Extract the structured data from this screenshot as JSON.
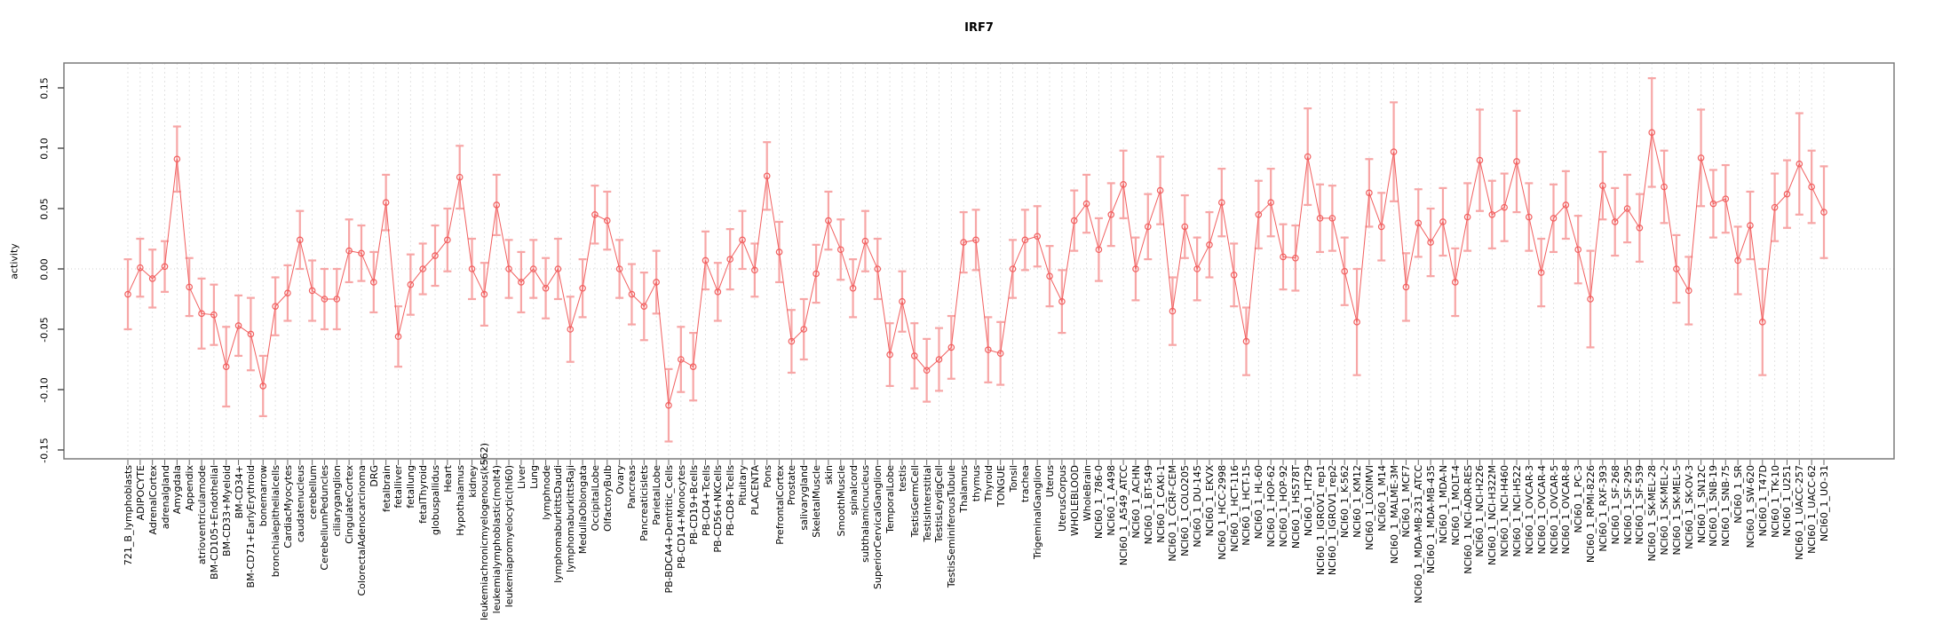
{
  "chart_data": {
    "type": "line",
    "title": "IRF7",
    "ylabel": "activity",
    "xlabel": "",
    "ylim": [
      -0.17,
      0.17
    ],
    "y_tick_values": [
      0.15,
      0.1,
      0.05,
      0.0,
      -0.05,
      -0.1,
      -0.15
    ],
    "y_tick_labels": [
      "0.15",
      "0.10",
      "0.05",
      "0.00",
      "-0.05",
      "-0.10",
      "-0.15"
    ],
    "grid": "dashed vertical gridline per category; dotted horizontal line at 0",
    "legend": "none",
    "marker": "open-circle-with-error-bars",
    "series_color": "#f15f5f",
    "error_bar_color": "#f7a6a6",
    "gridline_color": "#e0e0e0",
    "categories": [
      "721_B_lymphoblasts",
      "ADIPOCYTE",
      "AdrenalCortex",
      "adrenalgland",
      "Amygdala",
      "Appendix",
      "atrioventricularnode",
      "BM-CD105+Endothelial",
      "BM-CD33+Myeloid",
      "BM-CD34+",
      "BM-CD71+EarlyErythroid",
      "bonemarrow",
      "bronchialepithelialcells",
      "CardiacMyocytes",
      "caudatenucleus",
      "cerebellum",
      "CerebellumPeduncles",
      "ciliaryganglion",
      "CingulateCortex",
      "ColorectalAdenocarcinoma",
      "DRG",
      "fetalbrain",
      "fetalliver",
      "fetallung",
      "fetalThyroid",
      "globuspallidus",
      "Heart",
      "Hypothalamus",
      "kidney",
      "leukemiachronicmyelogenous(k562)",
      "leukemialymphoblastic(molt4)",
      "leukemiapromyelocytic(hl60)",
      "Liver",
      "Lung",
      "lymphnode",
      "lymphomaburkittsDaudi",
      "lymphomaburkittsRaji",
      "MedullaOblongata",
      "OccipitalLobe",
      "OlfactoryBulb",
      "Ovary",
      "Pancreas",
      "Pancreaticislets",
      "ParietalLobe",
      "PB-BDCA4+Dentritic_Cells",
      "PB-CD14+Monocytes",
      "PB-CD19+Bcells",
      "PB-CD4+Tcells",
      "PB-CD56+NKCells",
      "PB-CD8+Tcells",
      "Pituitary",
      "PLACENTA",
      "Pons",
      "PrefrontalCortex",
      "Prostate",
      "salivarygland",
      "SkeletalMuscle",
      "skin",
      "SmoothMuscle",
      "spinalcord",
      "subthalamicnucleus",
      "SuperiorCervicalGanglion",
      "TemporalLobe",
      "testis",
      "TestisGermCell",
      "TestisInterstitial",
      "TestisLeydigCell",
      "TestisSeminiferousTubule",
      "Thalamus",
      "thymus",
      "Thyroid",
      "TONGUE",
      "Tonsil",
      "trachea",
      "TrigeminalGanglion",
      "Uterus",
      "UterusCorpus",
      "WHOLEBLOOD",
      "WholeBrain",
      "NCI60_1_786-0",
      "NCI60_1_A498",
      "NCI60_1_A549_ATCC",
      "NCI60_1_ACHN",
      "NCI60_1_BT-549",
      "NCI60_1_CAKI-1",
      "NCI60_1_CCRF-CEM",
      "NCI60_1_COLO205",
      "NCI60_1_DU-145",
      "NCI60_1_EKVX",
      "NCI60_1_HCC-2998",
      "NCI60_1_HCT-116",
      "NCI60_1_HCT-15",
      "NCI60_1_HL-60",
      "NCI60_1_HOP-62",
      "NCI60_1_HOP-92",
      "NCI60_1_HS578T",
      "NCI60_1_HT29",
      "NCI60_1_IGROV1_rep1",
      "NCI60_1_IGROV1_rep2",
      "NCI60_1_K-562",
      "NCI60_1_KM12",
      "NCI60_1_LOXIMVI",
      "NCI60_1_M14",
      "NCI60_1_MALME-3M",
      "NCI60_1_MCF7",
      "NCI60_1_MDA-MB-231_ATCC",
      "NCI60_1_MDA-MB-435",
      "NCI60_1_MDA-N",
      "NCI60_1_MOLT-4",
      "NCI60_1_NCI-ADR-RES",
      "NCI60_1_NCI-H226",
      "NCI60_1_NCI-H322M",
      "NCI60_1_NCI-H460",
      "NCI60_1_NCI-H522",
      "NCI60_1_OVCAR-3",
      "NCI60_1_OVCAR-4",
      "NCI60_1_OVCAR-5",
      "NCI60_1_OVCAR-8",
      "NCI60_1_PC-3",
      "NCI60_1_RPMI-8226",
      "NCI60_1_RXF-393",
      "NCI60_1_SF-268",
      "NCI60_1_SF-295",
      "NCI60_1_SF-539",
      "NCI60_1_SK-MEL-28",
      "NCI60_1_SK-MEL-2",
      "NCI60_1_SK-MEL-5",
      "NCI60_1_SK-OV-3",
      "NCI60_1_SN12C",
      "NCI60_1_SNB-19",
      "NCI60_1_SNB-75",
      "NCI60_1_SR",
      "NCI60_1_SW-620",
      "NCI60_1_T47D",
      "NCI60_1_TK-10",
      "NCI60_1_U251",
      "NCI60_1_UACC-257",
      "NCI60_1_UACC-62",
      "NCI60_1_UO-31"
    ],
    "values": [
      -0.021,
      0.001,
      -0.008,
      0.002,
      0.091,
      -0.015,
      -0.037,
      -0.038,
      -0.081,
      -0.047,
      -0.054,
      -0.097,
      -0.031,
      -0.02,
      0.024,
      -0.018,
      -0.025,
      -0.025,
      0.015,
      0.013,
      -0.011,
      0.055,
      -0.056,
      -0.013,
      0.0,
      0.011,
      0.024,
      0.076,
      0.0,
      -0.021,
      0.053,
      0.0,
      -0.011,
      0.0,
      -0.016,
      0.0,
      -0.05,
      -0.016,
      0.045,
      0.04,
      0.0,
      -0.021,
      -0.031,
      -0.011,
      -0.113,
      -0.075,
      -0.081,
      0.007,
      -0.019,
      0.008,
      0.024,
      -0.001,
      0.077,
      0.014,
      -0.06,
      -0.05,
      -0.004,
      0.04,
      0.016,
      -0.016,
      0.023,
      0.0,
      -0.071,
      -0.027,
      -0.072,
      -0.084,
      -0.075,
      -0.065,
      0.022,
      0.024,
      -0.067,
      -0.07,
      0.0,
      0.024,
      0.027,
      -0.006,
      -0.027,
      0.04,
      0.054,
      0.016,
      0.045,
      0.07,
      0.0,
      0.035,
      0.065,
      -0.035,
      0.035,
      0.0,
      0.02,
      0.055,
      -0.005,
      -0.06,
      0.045,
      0.055,
      0.01,
      0.009,
      0.093,
      0.042,
      0.042,
      -0.002,
      -0.044,
      0.063,
      0.035,
      0.097,
      -0.015,
      0.038,
      0.022,
      0.039,
      -0.011,
      0.043,
      0.09,
      0.045,
      0.051,
      0.089,
      0.043,
      -0.003,
      0.042,
      0.053,
      0.016,
      -0.025,
      0.069,
      0.039,
      0.05,
      0.034,
      0.113,
      0.068,
      0.0,
      -0.018,
      0.092,
      0.054,
      0.058,
      0.007,
      0.036,
      -0.044,
      0.051,
      0.062,
      0.087,
      0.068,
      0.047
    ],
    "err": [
      0.029,
      0.024,
      0.024,
      0.021,
      0.027,
      0.024,
      0.029,
      0.025,
      0.033,
      0.025,
      0.03,
      0.025,
      0.024,
      0.023,
      0.024,
      0.025,
      0.025,
      0.025,
      0.026,
      0.023,
      0.025,
      0.023,
      0.025,
      0.025,
      0.021,
      0.025,
      0.026,
      0.026,
      0.025,
      0.026,
      0.025,
      0.024,
      0.025,
      0.024,
      0.025,
      0.025,
      0.027,
      0.024,
      0.024,
      0.024,
      0.024,
      0.025,
      0.028,
      0.026,
      0.03,
      0.027,
      0.028,
      0.024,
      0.024,
      0.025,
      0.024,
      0.022,
      0.028,
      0.025,
      0.026,
      0.025,
      0.024,
      0.024,
      0.025,
      0.024,
      0.025,
      0.025,
      0.026,
      0.025,
      0.027,
      0.026,
      0.026,
      0.026,
      0.025,
      0.025,
      0.027,
      0.026,
      0.024,
      0.025,
      0.025,
      0.025,
      0.026,
      0.025,
      0.024,
      0.026,
      0.026,
      0.028,
      0.026,
      0.027,
      0.028,
      0.028,
      0.026,
      0.026,
      0.027,
      0.028,
      0.026,
      0.028,
      0.028,
      0.028,
      0.027,
      0.027,
      0.04,
      0.028,
      0.027,
      0.028,
      0.044,
      0.028,
      0.028,
      0.041,
      0.028,
      0.028,
      0.028,
      0.028,
      0.028,
      0.028,
      0.042,
      0.028,
      0.028,
      0.042,
      0.028,
      0.028,
      0.028,
      0.028,
      0.028,
      0.04,
      0.028,
      0.028,
      0.028,
      0.028,
      0.045,
      0.03,
      0.028,
      0.028,
      0.04,
      0.028,
      0.028,
      0.028,
      0.028,
      0.044,
      0.028,
      0.028,
      0.042,
      0.03,
      0.038
    ]
  }
}
